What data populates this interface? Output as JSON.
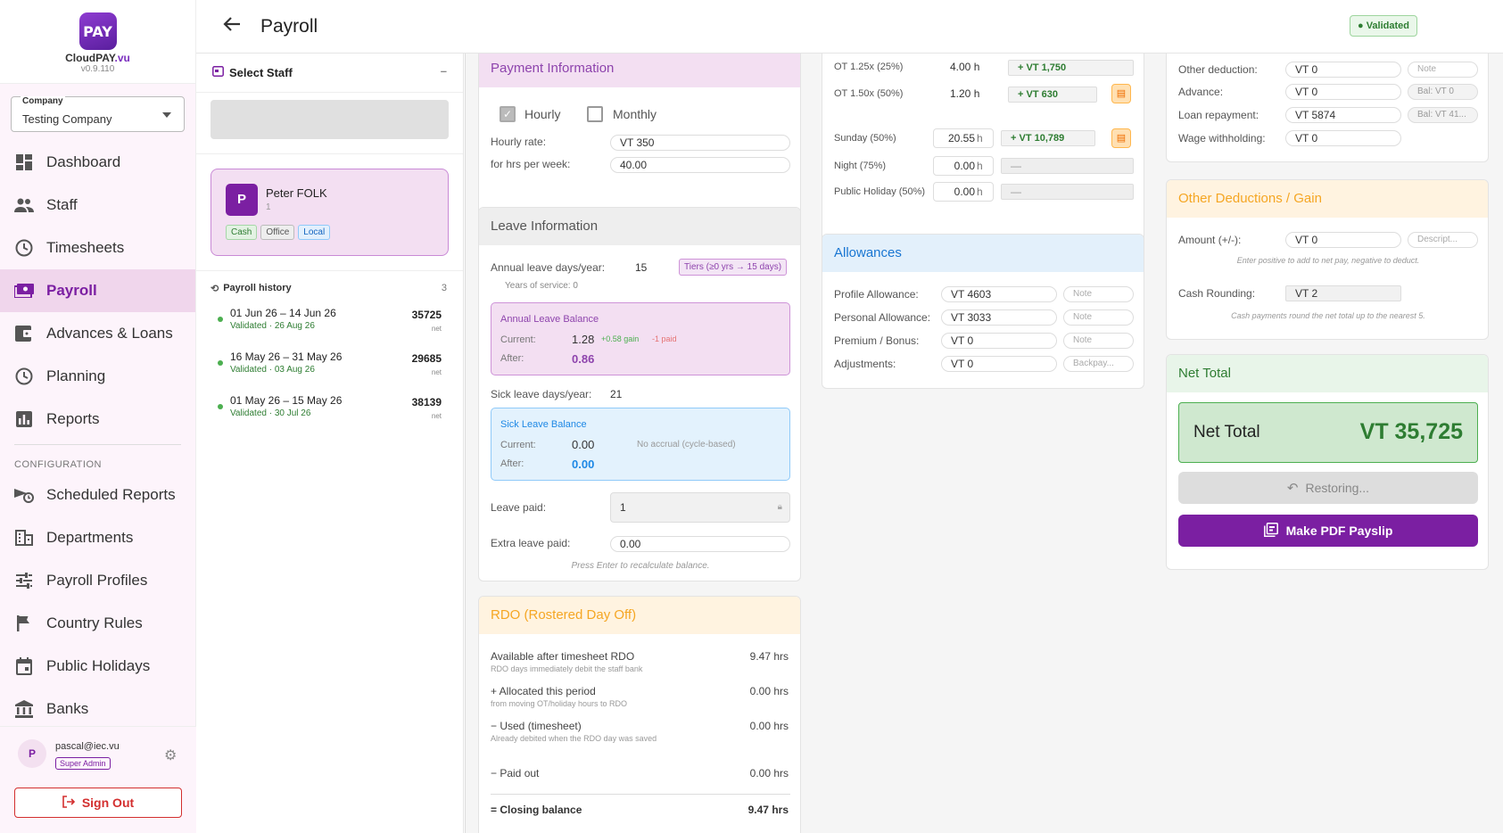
{
  "sidebar": {
    "logo_text": "PAY",
    "brand_cloud": "Cloud",
    "brand_pay": "PAY",
    "brand_vu": ".vu",
    "version": "v0.9.110",
    "company_label": "Company",
    "company_value": "Testing Company",
    "nav": [
      {
        "label": "Dashboard",
        "icon": "dashboard-icon"
      },
      {
        "label": "Staff",
        "icon": "people-icon"
      },
      {
        "label": "Timesheets",
        "icon": "clock-icon"
      },
      {
        "label": "Payroll",
        "icon": "payments-icon"
      },
      {
        "label": "Advances & Loans",
        "icon": "wallet-icon"
      },
      {
        "label": "Planning",
        "icon": "clock-icon"
      },
      {
        "label": "Reports",
        "icon": "bar-chart-icon"
      }
    ],
    "config_heading": "CONFIGURATION",
    "config_nav": [
      {
        "label": "Scheduled Reports",
        "icon": "schedule-send-icon"
      },
      {
        "label": "Departments",
        "icon": "building-icon"
      },
      {
        "label": "Payroll Profiles",
        "icon": "tune-icon"
      },
      {
        "label": "Country Rules",
        "icon": "flag-icon"
      },
      {
        "label": "Public Holidays",
        "icon": "calendar-icon"
      },
      {
        "label": "Banks",
        "icon": "bank-icon"
      }
    ],
    "user_initial": "P",
    "user_email": "pascal@iec.vu",
    "user_role": "Super Admin",
    "sign_out": "Sign Out",
    "accent": "#7b1fa2"
  },
  "header": {
    "title": "Payroll",
    "status": "Validated"
  },
  "staff_panel": {
    "heading": "Select Staff",
    "collapse": "–",
    "staff": {
      "initial": "P",
      "name": "Peter FOLK",
      "id": "1",
      "tags": [
        "Cash",
        "Office",
        "Local"
      ]
    },
    "history_heading": "Payroll history",
    "history_count": "3",
    "history": [
      {
        "period": "01 Jun 26 – 14 Jun 26",
        "status": "Validated · 26 Aug 26",
        "amount": "35725",
        "unit": "net"
      },
      {
        "period": "16 May 26 – 31 May 26",
        "status": "Validated · 03 Aug 26",
        "amount": "29685",
        "unit": "net"
      },
      {
        "period": "01 May 26 – 15 May 26",
        "status": "Validated · 30 Jul 26",
        "amount": "38139",
        "unit": "net"
      }
    ]
  },
  "payment": {
    "title": "Payment Information",
    "hourly_label": "Hourly",
    "monthly_label": "Monthly",
    "rate_label": "Hourly rate:",
    "rate_value": "VT 350",
    "hours_label": "for hrs per week:",
    "hours_value": "40.00"
  },
  "leave": {
    "title": "Leave Information",
    "annual_label": "Annual leave days/year:",
    "annual_value": "15",
    "tiers": "Tiers (≥0 yrs → 15 days)",
    "years": "Years of service: 0",
    "al_title": "Annual Leave Balance",
    "current_label": "Current:",
    "al_current": "1.28",
    "al_gain": "+0.58 gain",
    "al_paid": "-1 paid",
    "after_label": "After:",
    "al_after": "0.86",
    "sick_label": "Sick leave days/year:",
    "sick_value": "21",
    "sl_title": "Sick Leave Balance",
    "sl_current": "0.00",
    "sl_note": "No accrual (cycle-based)",
    "sl_after": "0.00",
    "paid_label": "Leave paid:",
    "paid_value": "1",
    "extra_label": "Extra leave paid:",
    "extra_value": "0.00",
    "hint": "Press Enter to recalculate balance."
  },
  "rdo": {
    "title": "RDO (Rostered Day Off)",
    "rows": [
      {
        "label": "Available after timesheet RDO",
        "sub": "RDO days immediately debit the staff bank",
        "value": "9.47 hrs"
      },
      {
        "label": "+ Allocated this period",
        "sub": "from moving OT/holiday hours to RDO",
        "value": "0.00 hrs"
      },
      {
        "label": "− Used (timesheet)",
        "sub": "Already debited when the RDO day was saved",
        "value": "0.00 hrs"
      },
      {
        "label": "− Paid out",
        "sub": "",
        "value": "0.00 hrs"
      }
    ],
    "closing_label": "= Closing balance",
    "closing_value": "9.47 hrs"
  },
  "overtime": {
    "rows": [
      {
        "label": "OT 1.25x (25%)",
        "hours": "4.00 h",
        "amount": "+ VT 1,750"
      },
      {
        "label": "OT 1.50x (50%)",
        "hours": "1.20 h",
        "amount": "+ VT 630"
      },
      {
        "label": "Sunday (50%)",
        "hours": "20.55",
        "amount": "+ VT 10,789"
      },
      {
        "label": "Night (75%)",
        "hours": "0.00",
        "amount": "—"
      },
      {
        "label": "Public Holiday (50%)",
        "hours": "0.00",
        "amount": "—"
      }
    ],
    "unit": "h"
  },
  "allowances": {
    "title": "Allowances",
    "rows": [
      {
        "label": "Profile Allowance:",
        "value": "VT 4603",
        "note": "Note"
      },
      {
        "label": "Personal Allowance:",
        "value": "VT 3033",
        "note": "Note"
      },
      {
        "label": "Premium / Bonus:",
        "value": "VT 0",
        "note": "Note"
      },
      {
        "label": "Adjustments:",
        "value": "VT 0",
        "note": "Backpay..."
      }
    ]
  },
  "deductions": {
    "rows": [
      {
        "label": "Other deduction:",
        "value": "VT 0",
        "note": "Note"
      },
      {
        "label": "Advance:",
        "value": "VT 0",
        "note": "Bal: VT 0"
      },
      {
        "label": "Loan repayment:",
        "value": "VT 5874",
        "note": "Bal: VT 41..."
      },
      {
        "label": "Wage withholding:",
        "value": "VT 0",
        "note": ""
      }
    ]
  },
  "other": {
    "title": "Other Deductions / Gain",
    "amount_label": "Amount (+/-):",
    "amount_value": "VT 0",
    "desc_placeholder": "Descript...",
    "hint1": "Enter positive to add to net pay, negative to deduct.",
    "rounding_label": "Cash Rounding:",
    "rounding_value": "VT 2",
    "hint2": "Cash payments round the net total up to the nearest 5."
  },
  "net": {
    "title": "Net Total",
    "label": "Net Total",
    "value": "VT 35,725",
    "restoring": "Restoring...",
    "pdf": "Make PDF Payslip"
  }
}
